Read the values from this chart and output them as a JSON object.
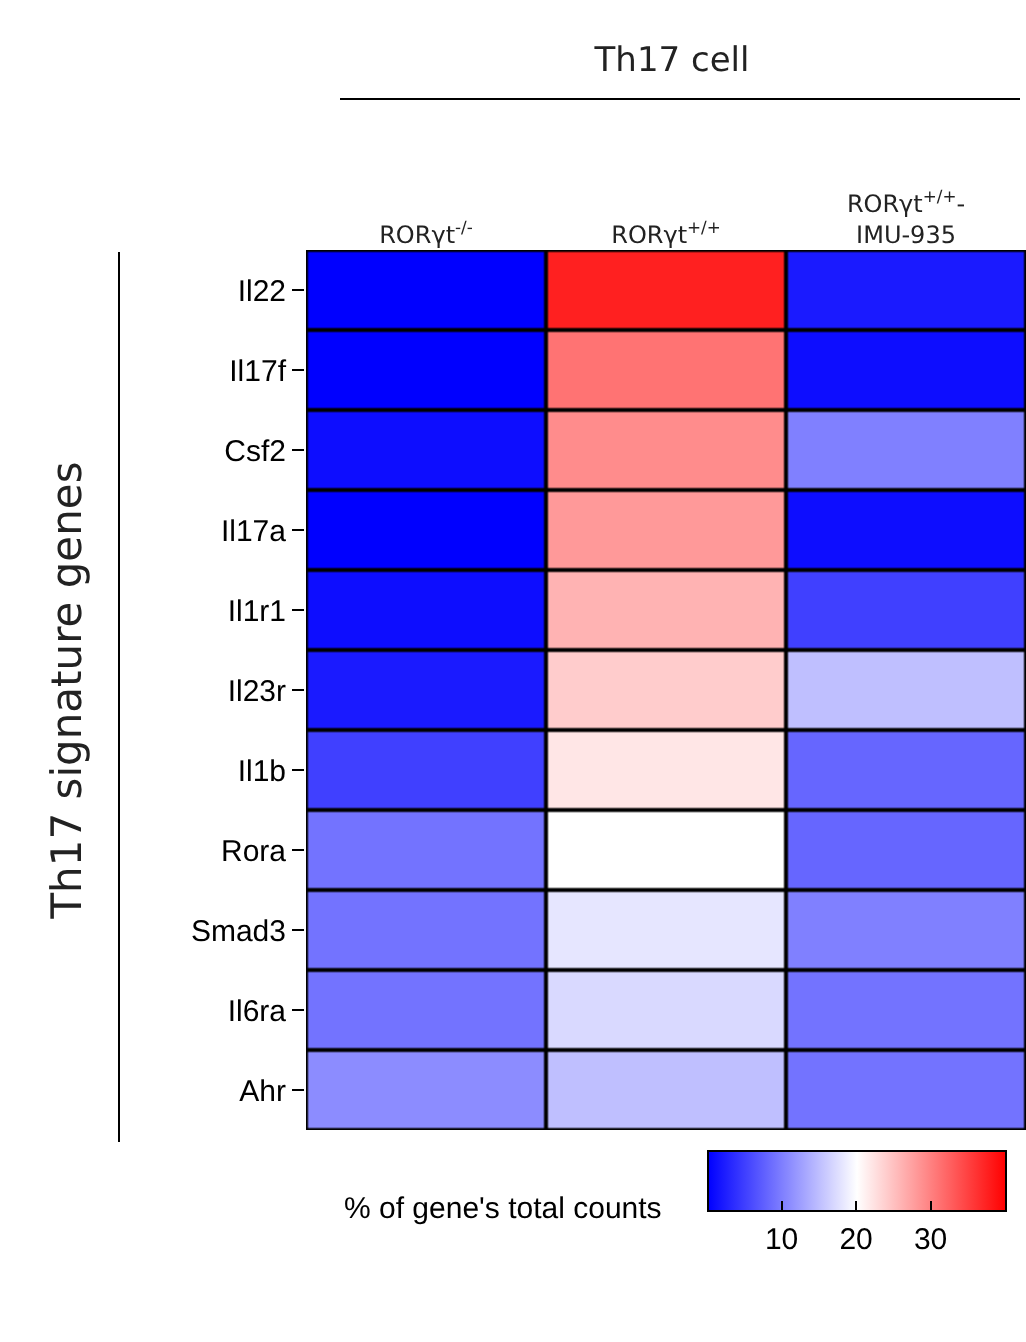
{
  "chart_data": {
    "type": "heatmap",
    "title": "Th17 cell",
    "ylabel": "Th17 signature genes",
    "clabel": "% of gene's total counts",
    "categories": [
      "RORγt$^{-/-}$",
      "RORγt$^{+/+}$",
      "RORγt$^{+/+}$-IMU-935"
    ],
    "y_categories": [
      "Il22",
      "Il17f",
      "Csf2",
      "Il17a",
      "Il1r1",
      "Il23r",
      "Il1b",
      "Rora",
      "Smad3",
      "Il6ra",
      "Ahr"
    ],
    "cells": [
      [
        0,
        37.5,
        2
      ],
      [
        0,
        31,
        1
      ],
      [
        1,
        29,
        10
      ],
      [
        0,
        28,
        1
      ],
      [
        1,
        26,
        5
      ],
      [
        2,
        24,
        15
      ],
      [
        5,
        22,
        8
      ],
      [
        9,
        20,
        8
      ],
      [
        9,
        18,
        10
      ],
      [
        9,
        17,
        9
      ],
      [
        11,
        15,
        9
      ]
    ],
    "clim": [
      0,
      40
    ],
    "cticks": [
      10,
      20,
      30
    ]
  }
}
